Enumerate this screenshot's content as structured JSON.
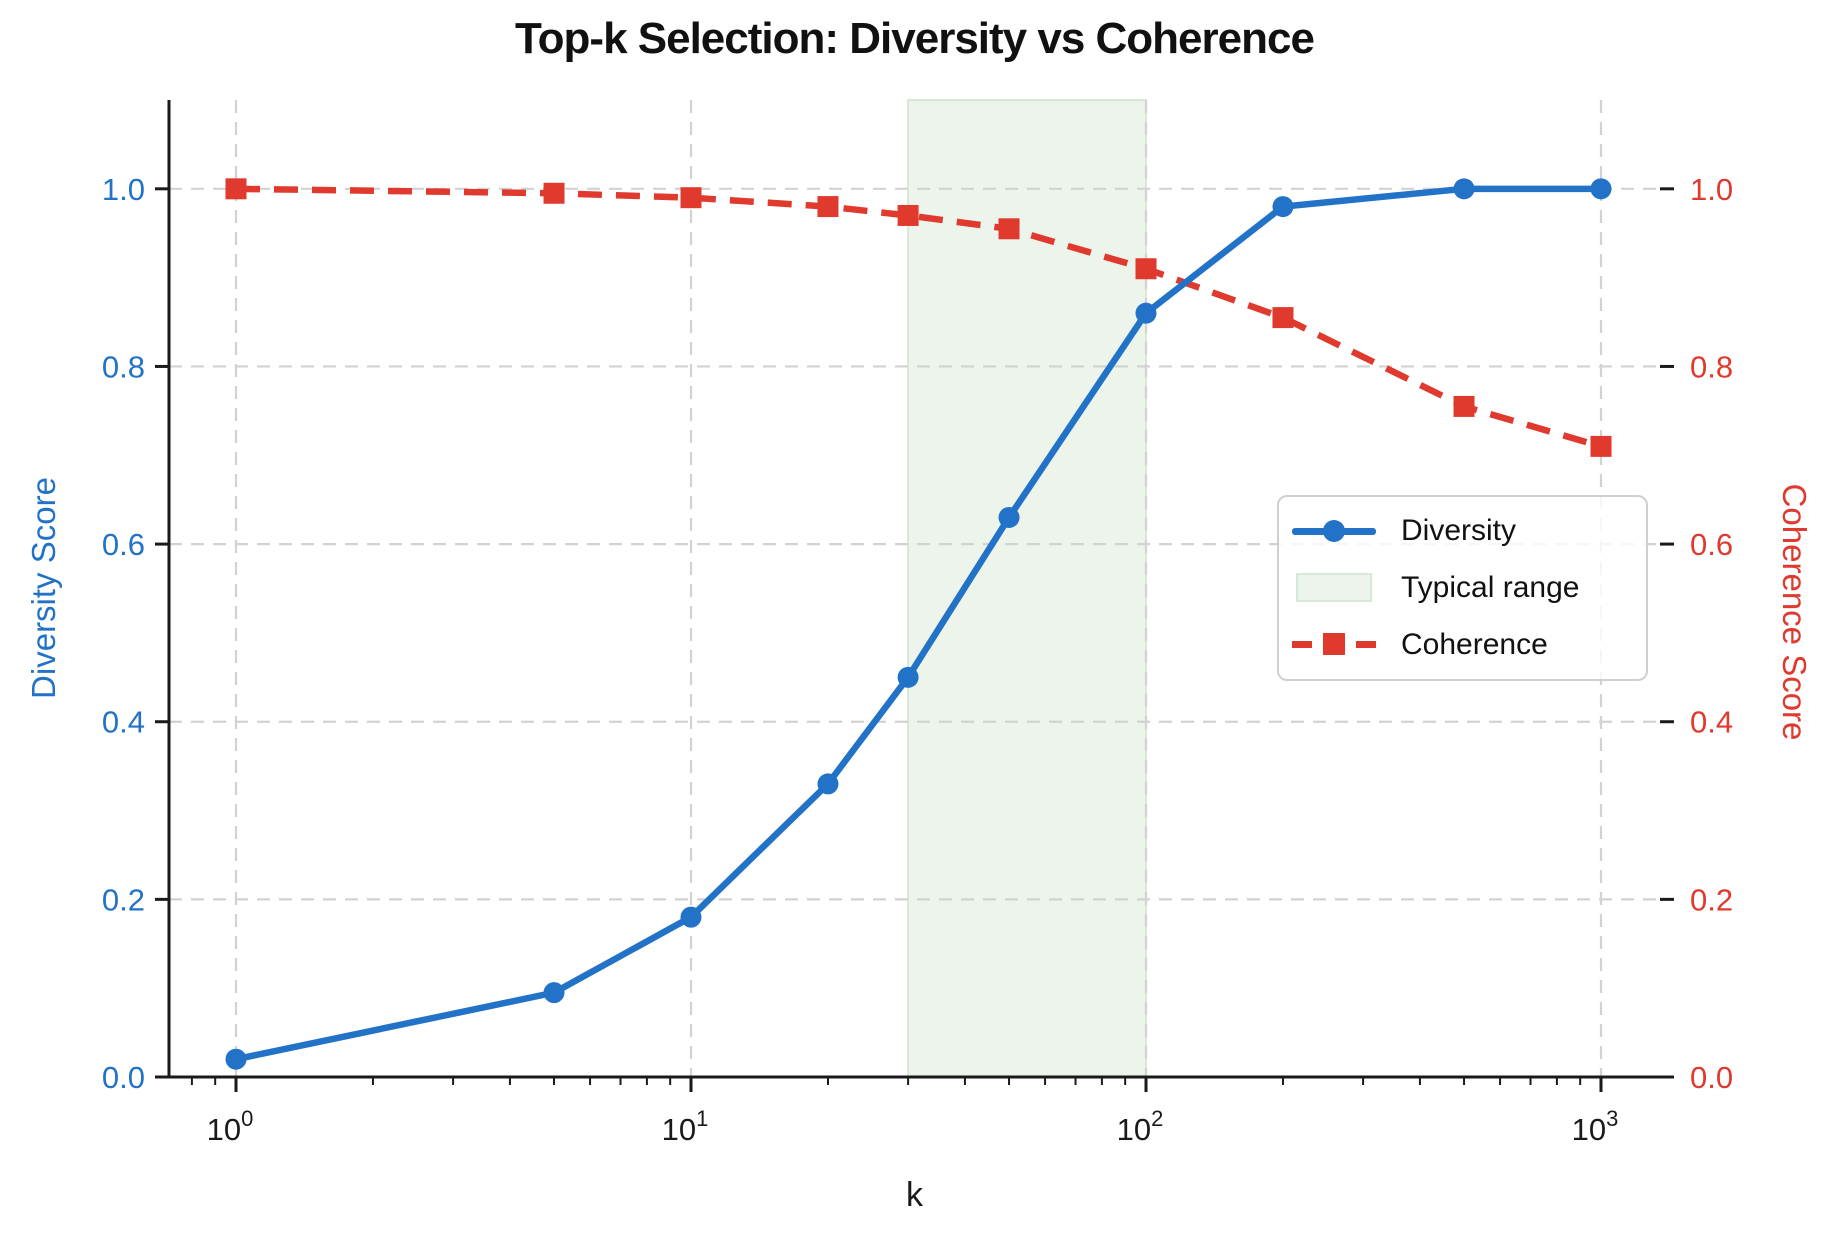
{
  "title": "Top-k Selection: Diversity vs Coherence",
  "axes": {
    "x_label": "k",
    "y_left_label": "Diversity Score",
    "y_right_label": "Coherence Score"
  },
  "legend": {
    "position": "center right",
    "items": [
      {
        "label": "Diversity",
        "swatch": "blue-solid-line-circle-marker"
      },
      {
        "label": "Typical range",
        "swatch": "light-green-patch"
      },
      {
        "label": "Coherence",
        "swatch": "red-dashed-line-square-marker"
      }
    ]
  },
  "colors": {
    "diversity": "#2272c8",
    "coherence": "#e03a2e",
    "band_fill": "#ecf4eb",
    "band_edge": "#d8e8d6",
    "grid": "#d2d2d2",
    "spine": "#1a1a1a",
    "title": "#111111",
    "tick": "#1a1a1a"
  },
  "chart_data": {
    "type": "line",
    "title": "Top-k Selection: Diversity vs Coherence",
    "xlabel": "k",
    "x_scale": "log",
    "xlim": [
      0.72,
      1350
    ],
    "ylim": [
      0,
      1.1
    ],
    "grid": true,
    "x": [
      1,
      5,
      10,
      20,
      30,
      50,
      100,
      200,
      500,
      1000
    ],
    "series": [
      {
        "name": "Diversity",
        "axis": "left",
        "axis_label": "Diversity Score",
        "color_key": "diversity",
        "style": "solid",
        "marker": "circle",
        "values": [
          0.02,
          0.095,
          0.18,
          0.33,
          0.45,
          0.63,
          0.86,
          0.98,
          1.0,
          1.0
        ]
      },
      {
        "name": "Coherence",
        "axis": "right",
        "axis_label": "Coherence Score",
        "color_key": "coherence",
        "style": "dashed",
        "marker": "square",
        "values": [
          1.0,
          0.995,
          0.99,
          0.98,
          0.97,
          0.955,
          0.91,
          0.855,
          0.755,
          0.71
        ]
      }
    ],
    "band": {
      "label": "Typical range",
      "x_from": 30,
      "x_to": 100
    },
    "x_major_ticks": [
      1,
      10,
      100,
      1000
    ],
    "x_tick_label_format": "10^exponent",
    "y_major_ticks": [
      0.0,
      0.2,
      0.4,
      0.6,
      0.8,
      1.0
    ]
  }
}
